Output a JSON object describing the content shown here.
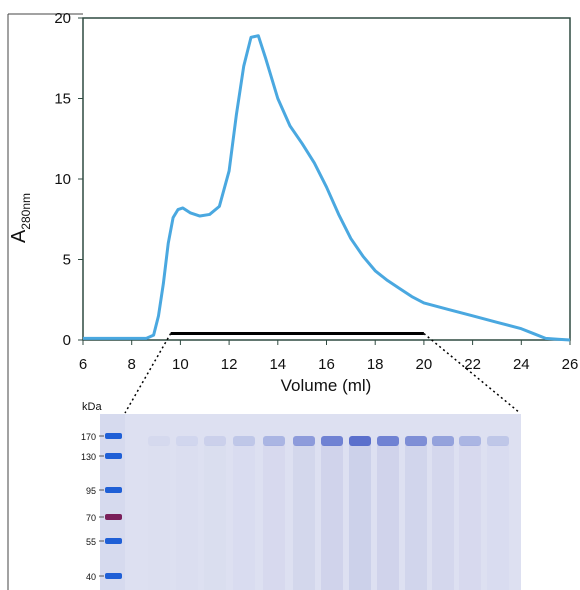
{
  "chart_data": {
    "type": "line",
    "xlabel": "Volume (ml)",
    "ylabel": "A",
    "ylabel_subscript": "280nm",
    "x": [
      6,
      8,
      8.6,
      8.9,
      9.1,
      9.3,
      9.5,
      9.7,
      9.9,
      10.1,
      10.4,
      10.8,
      11.2,
      11.6,
      12,
      12.3,
      12.6,
      12.9,
      13.2,
      13.5,
      14,
      14.5,
      15,
      15.5,
      16,
      16.5,
      17,
      17.5,
      18,
      18.5,
      19,
      19.5,
      20,
      21,
      22,
      23,
      24,
      24.5,
      25,
      25.5,
      26
    ],
    "series": [
      {
        "color": "#4aa8e0",
        "values": [
          0.1,
          0.1,
          0.1,
          0.3,
          1.5,
          3.5,
          6,
          7.6,
          8.1,
          8.2,
          7.9,
          7.7,
          7.8,
          8.3,
          10.5,
          14,
          17,
          18.8,
          18.9,
          17.5,
          15,
          13.3,
          12.2,
          11,
          9.5,
          7.8,
          6.3,
          5.2,
          4.3,
          3.7,
          3.2,
          2.7,
          2.3,
          1.9,
          1.5,
          1.1,
          0.7,
          0.4,
          0.1,
          0.05,
          0
        ]
      }
    ],
    "xlim": [
      6,
      26
    ],
    "xticks": [
      6,
      8,
      10,
      12,
      14,
      16,
      18,
      20,
      22,
      24,
      26
    ],
    "ylim": [
      0,
      20
    ],
    "yticks": [
      0,
      5,
      10,
      15,
      20
    ],
    "bracket": {
      "x": [
        9.6,
        20
      ],
      "y": 0.4
    }
  },
  "gel": {
    "unit": "kDa",
    "markers": [
      170,
      130,
      95,
      70,
      55,
      40
    ]
  }
}
